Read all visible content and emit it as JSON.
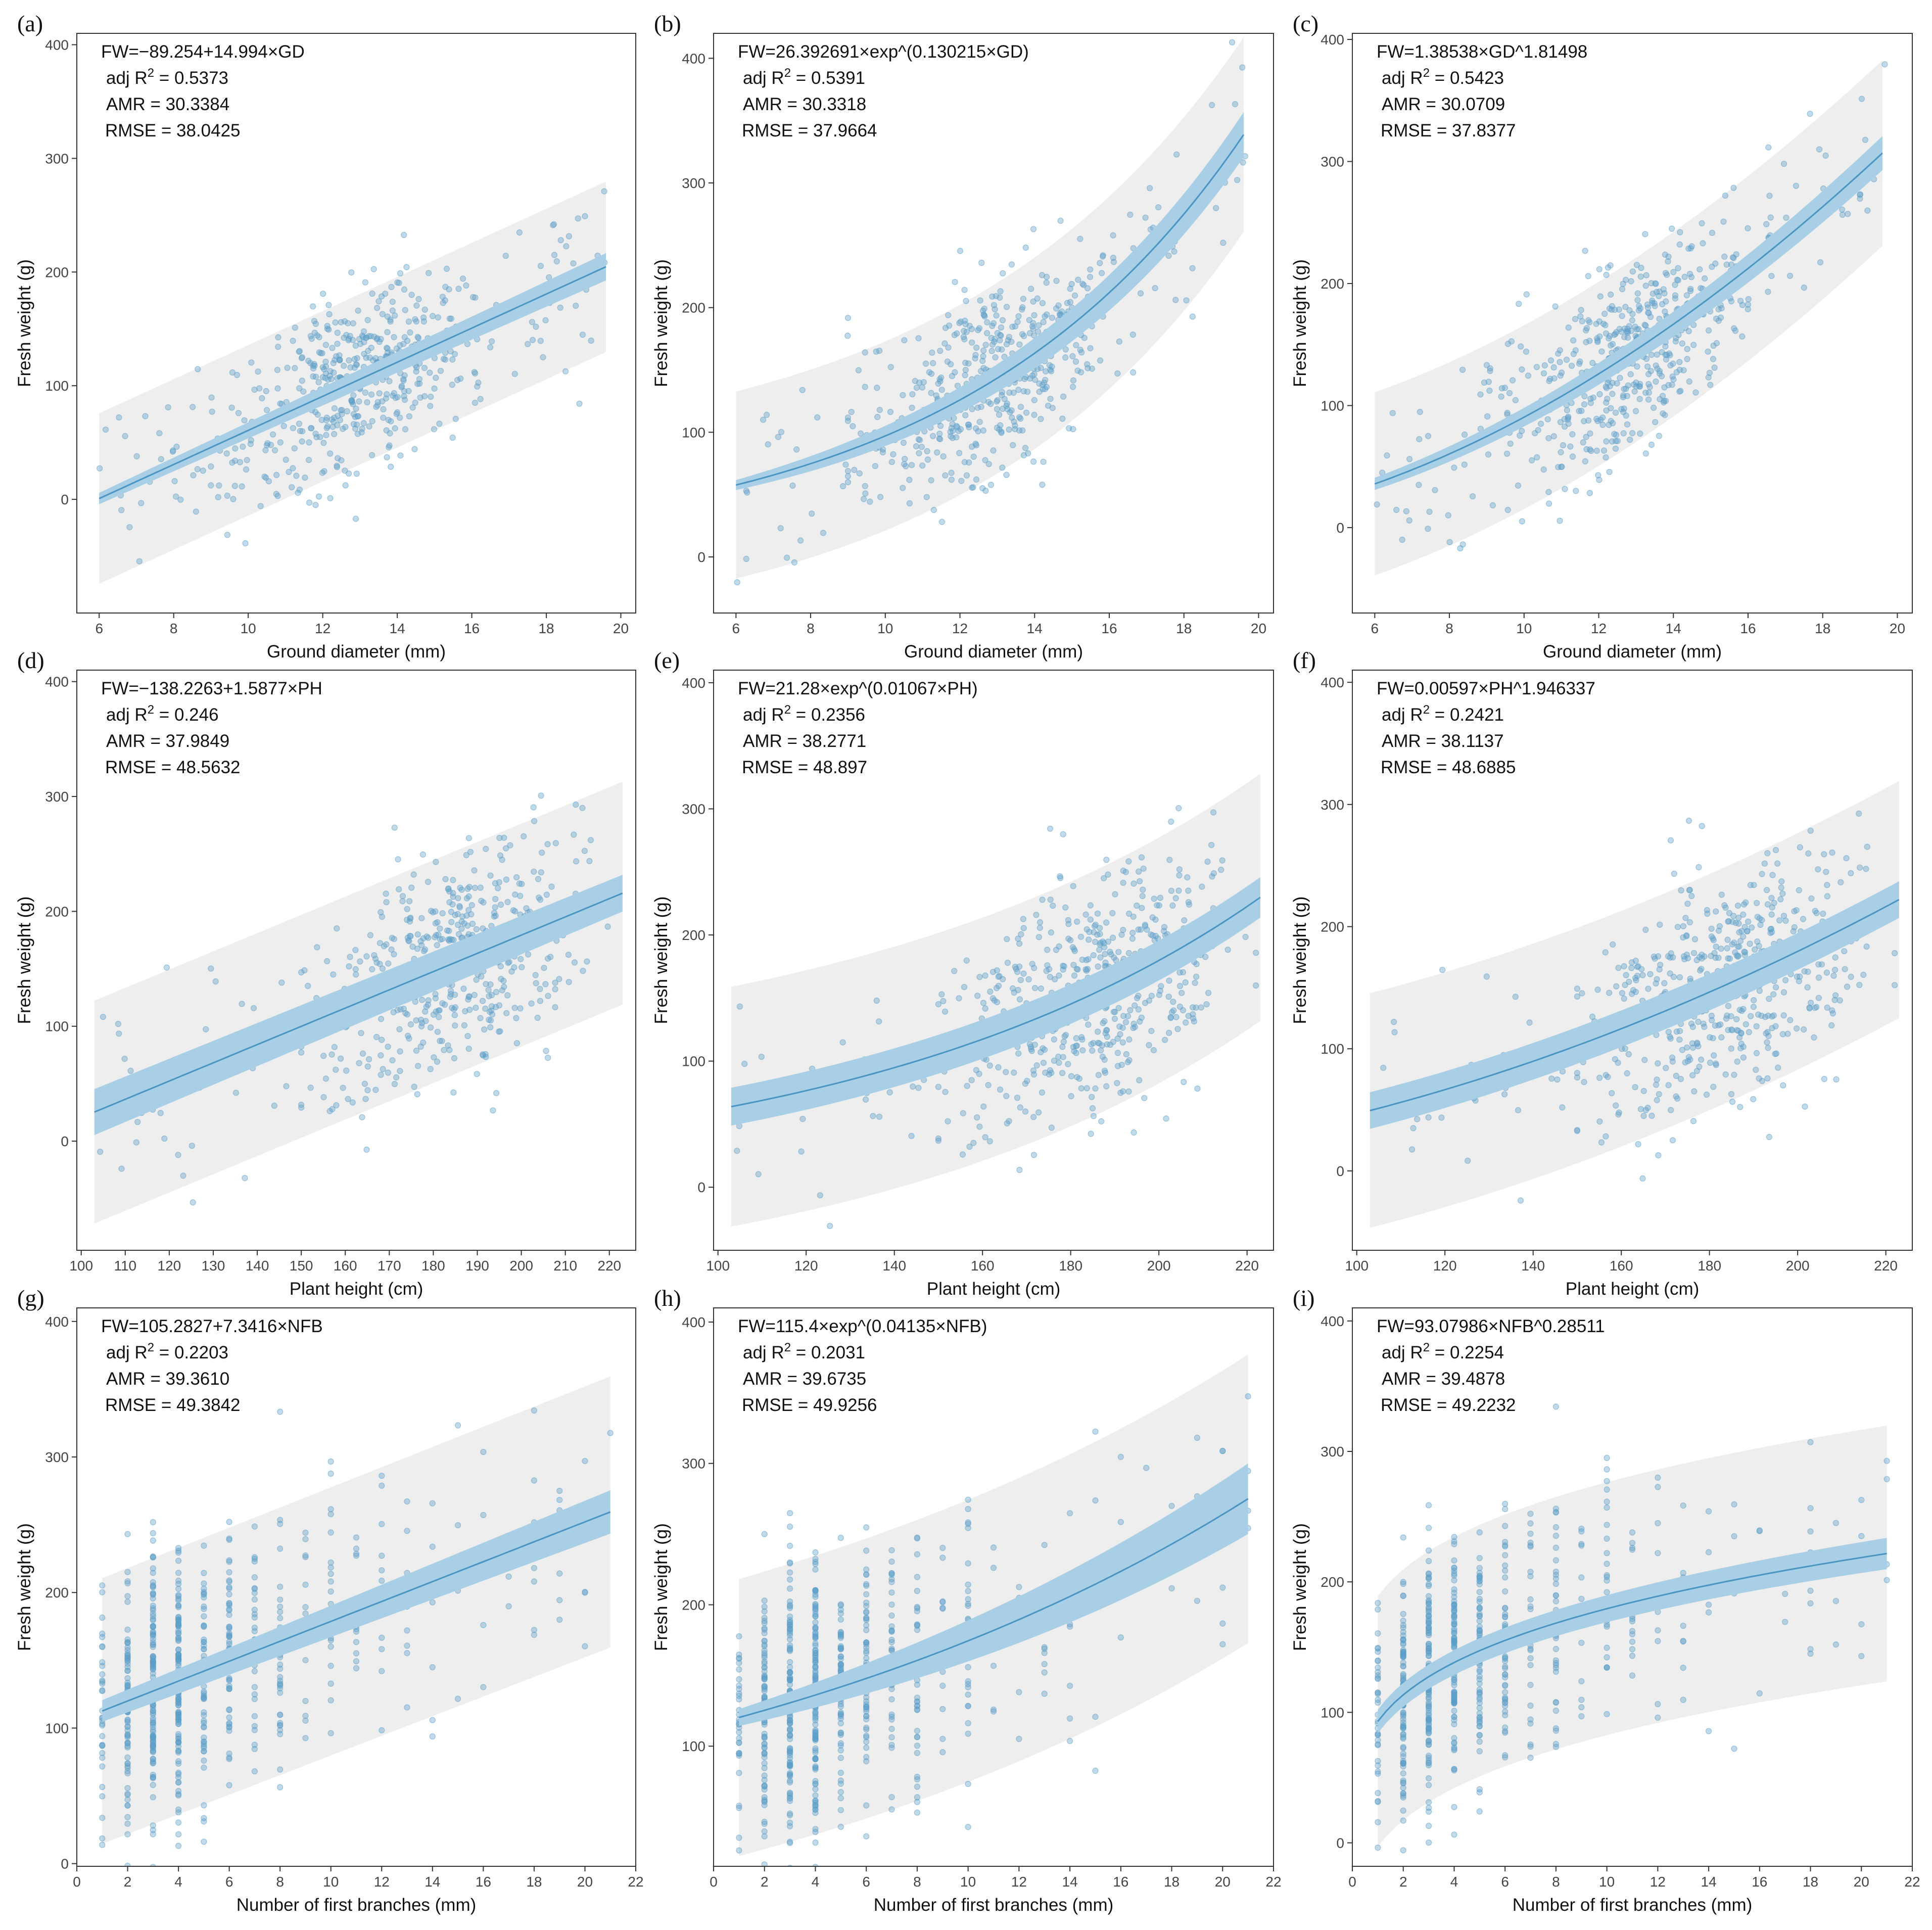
{
  "figure": {
    "colors": {
      "point": "#5b9fc8",
      "line": "#4a94c2",
      "ci_band": "#a9cfe6",
      "prediction_band": "#eeeeee",
      "frame": "#333333",
      "background": "#ffffff"
    }
  },
  "chart_data": [
    {
      "panel": "(a)",
      "type": "scatter",
      "model": "linear",
      "group": "gd",
      "equation": "FW=−89.254+14.994×GD",
      "stats": {
        "adj_r2_label": "adj R",
        "adj_r2_sup": "2",
        "adj_r2_value": " = 0.5373",
        "amr": "AMR = 30.3384",
        "rmse": "RMSE = 38.0425"
      },
      "fit": {
        "a": -89.254,
        "b": 14.994
      },
      "ci": [
        5,
        12
      ],
      "pi": [
        75,
        75
      ],
      "xlabel": "Ground diameter (mm)",
      "ylabel": "Fresh weight (g)",
      "xlim": [
        5.4,
        20.4
      ],
      "ylim": [
        -100,
        410
      ],
      "xticks": [
        "6",
        "8",
        "10",
        "12",
        "14",
        "16",
        "18",
        "20"
      ],
      "yticks": [
        "0",
        "100",
        "200",
        "300",
        "400"
      ]
    },
    {
      "panel": "(b)",
      "type": "scatter",
      "model": "exponential",
      "group": "gd",
      "equation": "FW=26.392691×exp^(0.130215×GD)",
      "stats": {
        "adj_r2_label": "adj R",
        "adj_r2_sup": "2",
        "adj_r2_value": " = 0.5391",
        "amr": "AMR = 30.3318",
        "rmse": "RMSE = 37.9664"
      },
      "fit": {
        "a": 26.392691,
        "b": 0.130215
      },
      "ci": [
        4,
        18
      ],
      "pi": [
        75,
        78
      ],
      "xlabel": "Ground diameter (mm)",
      "ylabel": "Fresh weight (g)",
      "xlim": [
        5.4,
        20.4
      ],
      "ylim": [
        -45,
        420
      ],
      "xticks": [
        "6",
        "8",
        "10",
        "12",
        "14",
        "16",
        "18",
        "20"
      ],
      "yticks": [
        "0",
        "100",
        "200",
        "300",
        "400"
      ]
    },
    {
      "panel": "(c)",
      "type": "scatter",
      "model": "power",
      "group": "gd",
      "equation": "FW=1.38538×GD^1.81498",
      "stats": {
        "adj_r2_label": "adj R",
        "adj_r2_sup": "2",
        "adj_r2_value": " = 0.5423",
        "amr": "AMR = 30.0709",
        "rmse": "RMSE = 37.8377"
      },
      "fit": {
        "a": 1.38538,
        "b": 1.81498
      },
      "ci": [
        5,
        14
      ],
      "pi": [
        75,
        76
      ],
      "xlabel": "Ground diameter (mm)",
      "ylabel": "Fresh weight (g)",
      "xlim": [
        5.4,
        20.4
      ],
      "ylim": [
        -70,
        405
      ],
      "xticks": [
        "6",
        "8",
        "10",
        "12",
        "14",
        "16",
        "18",
        "20"
      ],
      "yticks": [
        "0",
        "100",
        "200",
        "300",
        "400"
      ]
    },
    {
      "panel": "(d)",
      "type": "scatter",
      "model": "linear",
      "group": "ph",
      "equation": "FW=−138.2263+1.5877×PH",
      "stats": {
        "adj_r2_label": "adj R",
        "adj_r2_sup": "2",
        "adj_r2_value": " = 0.246",
        "amr": "AMR = 37.9849",
        "rmse": "RMSE = 48.5632"
      },
      "fit": {
        "a": -138.2263,
        "b": 1.5877
      },
      "ci": [
        20,
        16
      ],
      "pi": [
        97,
        97
      ],
      "xlabel": "Plant height (cm)",
      "ylabel": "Fresh weight (g)",
      "xlim": [
        99,
        226
      ],
      "ylim": [
        -95,
        410
      ],
      "xticks": [
        "100",
        "110",
        "120",
        "130",
        "140",
        "150",
        "160",
        "170",
        "180",
        "190",
        "200",
        "210",
        "220"
      ],
      "yticks": [
        "0",
        "100",
        "200",
        "300",
        "400"
      ]
    },
    {
      "panel": "(e)",
      "type": "scatter",
      "model": "exponential",
      "group": "ph",
      "equation": "FW=21.28×exp^(0.01067×PH)",
      "stats": {
        "adj_r2_label": "adj R",
        "adj_r2_sup": "2",
        "adj_r2_value": " = 0.2356",
        "amr": "AMR = 38.2771",
        "rmse": "RMSE = 48.897"
      },
      "fit": {
        "a": 21.28,
        "b": 0.01067
      },
      "ci": [
        15,
        16
      ],
      "pi": [
        95,
        98
      ],
      "xlabel": "Plant height (cm)",
      "ylabel": "Fresh weight (g)",
      "xlim": [
        99,
        226
      ],
      "ylim": [
        -50,
        410
      ],
      "xticks": [
        "100",
        "120",
        "140",
        "160",
        "180",
        "200",
        "220"
      ],
      "yticks": [
        "0",
        "100",
        "200",
        "300",
        "400"
      ]
    },
    {
      "panel": "(f)",
      "type": "scatter",
      "model": "power",
      "group": "ph",
      "equation": "FW=0.00597×PH^1.946337",
      "stats": {
        "adj_r2_label": "adj R",
        "adj_r2_sup": "2",
        "adj_r2_value": " = 0.2421",
        "amr": "AMR = 38.1137",
        "rmse": "RMSE = 48.6885"
      },
      "fit": {
        "a": 0.00597,
        "b": 1.946337
      },
      "ci": [
        15,
        15
      ],
      "pi": [
        96,
        97
      ],
      "xlabel": "Plant height (cm)",
      "ylabel": "Fresh weight (g)",
      "xlim": [
        99,
        226
      ],
      "ylim": [
        -65,
        410
      ],
      "xticks": [
        "100",
        "120",
        "140",
        "160",
        "180",
        "200",
        "220"
      ],
      "yticks": [
        "0",
        "100",
        "200",
        "300",
        "400"
      ]
    },
    {
      "panel": "(g)",
      "type": "scatter",
      "model": "linear",
      "group": "nfb",
      "equation": "FW=105.2827+7.3416×NFB",
      "stats": {
        "adj_r2_label": "adj R",
        "adj_r2_sup": "2",
        "adj_r2_value": " = 0.2203",
        "amr": "AMR = 39.3610",
        "rmse": "RMSE = 49.3842"
      },
      "fit": {
        "a": 105.2827,
        "b": 7.3416
      },
      "ci": [
        8,
        16
      ],
      "pi": [
        98,
        100
      ],
      "xlabel": "Number of first branches (mm)",
      "ylabel": "Fresh weight (g)",
      "xlim": [
        0,
        22
      ],
      "ylim": [
        -2,
        410
      ],
      "xticks": [
        "0",
        "2",
        "4",
        "6",
        "8",
        "10",
        "12",
        "14",
        "16",
        "18",
        "20",
        "22"
      ],
      "yticks": [
        "0",
        "100",
        "200",
        "300",
        "400"
      ]
    },
    {
      "panel": "(h)",
      "type": "scatter",
      "model": "exponential",
      "group": "nfb",
      "equation": "FW=115.4×exp^(0.04135×NFB)",
      "stats": {
        "adj_r2_label": "adj R",
        "adj_r2_sup": "2",
        "adj_r2_value": " = 0.2031",
        "amr": "AMR = 39.6735",
        "rmse": "RMSE = 49.9256"
      },
      "fit": {
        "a": 115.4,
        "b": 0.04135
      },
      "ci": [
        6,
        25
      ],
      "pi": [
        98,
        102
      ],
      "xlabel": "Number of first branches (mm)",
      "ylabel": "Fresh weight (g)",
      "xlim": [
        0,
        22
      ],
      "ylim": [
        15,
        410
      ],
      "xticks": [
        "0",
        "2",
        "4",
        "6",
        "8",
        "10",
        "12",
        "14",
        "16",
        "18",
        "20",
        "22"
      ],
      "yticks": [
        "100",
        "200",
        "300",
        "400"
      ]
    },
    {
      "panel": "(i)",
      "type": "scatter",
      "model": "power",
      "group": "nfb",
      "equation": "FW=93.07986×NFB^0.28511",
      "stats": {
        "adj_r2_label": "adj R",
        "adj_r2_sup": "2",
        "adj_r2_value": " = 0.2254",
        "amr": "AMR = 39.4878",
        "rmse": "RMSE = 49.2232"
      },
      "fit": {
        "a": 93.07986,
        "b": 0.28511
      },
      "ci": [
        9,
        12
      ],
      "pi": [
        96,
        98
      ],
      "xlabel": "Number of first branches (mm)",
      "ylabel": "Fresh weight (g)",
      "xlim": [
        0,
        22
      ],
      "ylim": [
        -18,
        410
      ],
      "xticks": [
        "0",
        "2",
        "4",
        "6",
        "8",
        "10",
        "12",
        "14",
        "16",
        "18",
        "20",
        "22"
      ],
      "yticks": [
        "0",
        "100",
        "200",
        "300",
        "400"
      ]
    }
  ]
}
